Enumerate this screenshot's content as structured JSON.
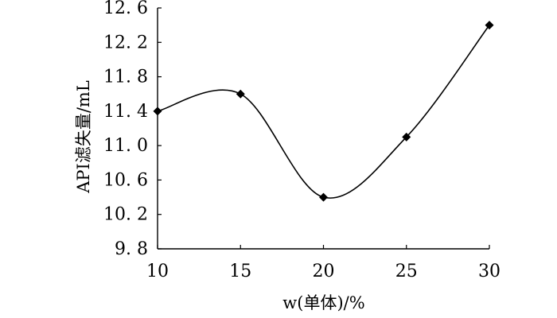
{
  "chart_data": {
    "type": "line",
    "title": "",
    "xlabel": "w(单体)/%",
    "ylabel": "API滤失量/mL",
    "x": [
      10,
      15,
      20,
      25,
      30
    ],
    "series": [
      {
        "values": [
          11.4,
          11.6,
          10.4,
          11.1,
          12.4
        ]
      }
    ],
    "xlim": [
      10,
      30
    ],
    "ylim": [
      9.8,
      12.6
    ],
    "xticks": [
      10,
      15,
      20,
      25,
      30
    ],
    "xtick_labels": [
      "10",
      "15",
      "20",
      "25",
      "30"
    ],
    "yticks": [
      9.8,
      10.2,
      10.6,
      11.0,
      11.4,
      11.8,
      12.2,
      12.6
    ],
    "ytick_labels": [
      "9. 8",
      "10. 2",
      "10. 6",
      "11. 0",
      "11. 4",
      "11. 8",
      "12. 2",
      "12. 6"
    ],
    "smooth": true,
    "marker": "diamond",
    "grid": false,
    "legend": "none"
  }
}
